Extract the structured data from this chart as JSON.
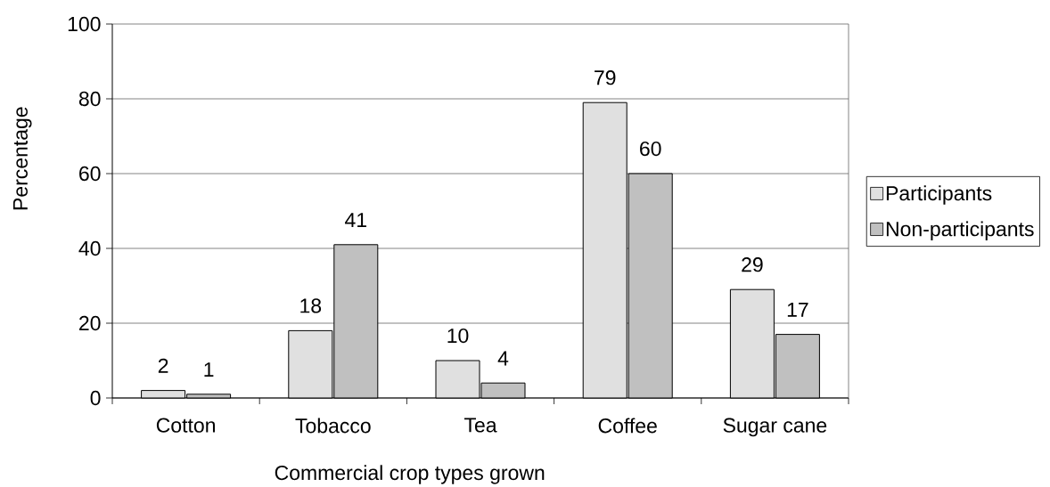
{
  "chart_data": {
    "type": "bar",
    "xlabel": "Commercial crop types grown",
    "ylabel": "Percentage",
    "categories": [
      "Cotton",
      "Tobacco",
      "Tea",
      "Coffee",
      "Sugar cane"
    ],
    "series": [
      {
        "name": "Participants",
        "color": "#e0e0e0",
        "values": [
          2,
          18,
          10,
          79,
          29
        ]
      },
      {
        "name": "Non-participants",
        "color": "#c0c0c0",
        "values": [
          1,
          41,
          4,
          60,
          17
        ]
      }
    ],
    "ylim": [
      0,
      100
    ],
    "yticks": [
      0,
      20,
      40,
      60,
      80,
      100
    ],
    "grid": "y",
    "legend": "right",
    "data_labels": true
  }
}
